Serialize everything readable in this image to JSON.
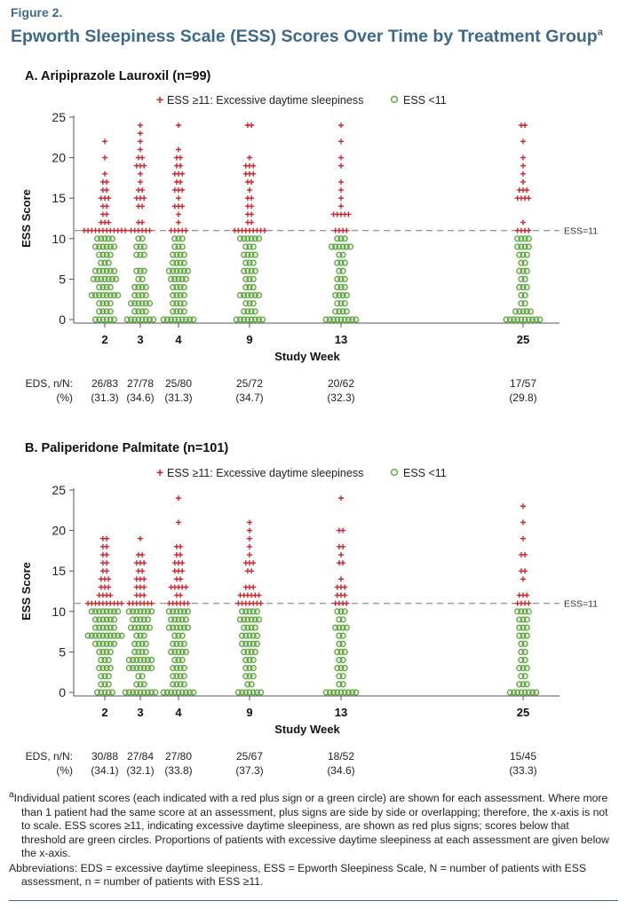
{
  "figure": {
    "label": "Figure 2.",
    "title": "Epworth Sleepiness Scale (ESS) Scores Over Time by Treatment Group",
    "title_sup": "a"
  },
  "legend": {
    "plus_label": "ESS ≥11: Excessive daytime sleepiness",
    "circle_label": "ESS <11"
  },
  "colors": {
    "plus": "#d2232a",
    "circle": "#5fa83f",
    "reference": "#9a9a9a",
    "title": "#3d6a8a"
  },
  "chart_data": [
    {
      "type": "scatter",
      "panel_title": "A. Aripiprazole Lauroxil (n=99)",
      "xlabel": "Study Week",
      "ylabel": "ESS Score",
      "x_ticks": [
        "2",
        "3",
        "4",
        "9",
        "13",
        "25"
      ],
      "y_ticks": [
        0,
        5,
        10,
        15,
        20,
        25
      ],
      "ylim": [
        0,
        25
      ],
      "reference_line": {
        "y": 11,
        "label": "ESS=11"
      },
      "row_label_1": "EDS, n/N:",
      "row_label_2": "(%)",
      "eds_counts": [
        "26/83",
        "27/78",
        "25/80",
        "25/72",
        "20/62",
        "17/57"
      ],
      "eds_percent": [
        "(31.3)",
        "(34.6)",
        "(31.3)",
        "(34.7)",
        "(32.3)",
        "(29.8)"
      ],
      "series": [
        {
          "week": "2",
          "counts": {
            "0": 6,
            "1": 4,
            "2": 4,
            "3": 8,
            "4": 4,
            "5": 7,
            "6": 6,
            "7": 3,
            "8": 4,
            "9": 6,
            "10": 5,
            "11": 12,
            "12": 3,
            "13": 2,
            "14": 2,
            "15": 3,
            "16": 2,
            "17": 2,
            "18": 1,
            "20": 1,
            "22": 1
          }
        },
        {
          "week": "3",
          "counts": {
            "0": 8,
            "1": 4,
            "2": 6,
            "3": 4,
            "4": 4,
            "5": 2,
            "6": 3,
            "8": 3,
            "9": 3,
            "10": 2,
            "11": 6,
            "12": 2,
            "14": 2,
            "15": 3,
            "16": 2,
            "17": 1,
            "18": 1,
            "19": 3,
            "20": 2,
            "21": 1,
            "22": 1,
            "23": 1,
            "24": 1
          }
        },
        {
          "week": "4",
          "counts": {
            "0": 9,
            "1": 4,
            "2": 4,
            "3": 4,
            "4": 4,
            "5": 5,
            "6": 6,
            "7": 4,
            "8": 4,
            "9": 3,
            "10": 3,
            "11": 5,
            "12": 1,
            "13": 1,
            "14": 3,
            "15": 1,
            "16": 3,
            "17": 2,
            "18": 3,
            "19": 2,
            "20": 2,
            "21": 1,
            "24": 1
          }
        },
        {
          "week": "9",
          "counts": {
            "0": 8,
            "1": 4,
            "2": 3,
            "3": 6,
            "4": 3,
            "5": 3,
            "6": 4,
            "7": 3,
            "8": 4,
            "9": 3,
            "10": 6,
            "11": 9,
            "12": 2,
            "13": 2,
            "14": 2,
            "15": 2,
            "16": 1,
            "17": 2,
            "18": 3,
            "19": 3,
            "20": 1,
            "24": 2
          }
        },
        {
          "week": "13",
          "counts": {
            "0": 9,
            "1": 4,
            "2": 3,
            "3": 4,
            "4": 3,
            "5": 3,
            "6": 2,
            "7": 3,
            "8": 2,
            "9": 6,
            "10": 3,
            "11": 4,
            "13": 5,
            "14": 1,
            "15": 1,
            "16": 1,
            "17": 1,
            "19": 1,
            "20": 1,
            "22": 1,
            "24": 1
          }
        },
        {
          "week": "25",
          "counts": {
            "0": 10,
            "1": 5,
            "2": 2,
            "3": 2,
            "4": 3,
            "5": 2,
            "6": 3,
            "7": 2,
            "8": 3,
            "9": 4,
            "10": 4,
            "11": 4,
            "12": 1,
            "15": 4,
            "16": 3,
            "17": 1,
            "18": 1,
            "19": 1,
            "20": 1,
            "22": 1,
            "24": 2
          }
        }
      ]
    },
    {
      "type": "scatter",
      "panel_title": "B. Paliperidone Palmitate (n=101)",
      "xlabel": "Study Week",
      "ylabel": "ESS Score",
      "x_ticks": [
        "2",
        "3",
        "4",
        "9",
        "13",
        "25"
      ],
      "y_ticks": [
        0,
        5,
        10,
        15,
        20,
        25
      ],
      "ylim": [
        0,
        25
      ],
      "reference_line": {
        "y": 11,
        "label": "ESS=11"
      },
      "row_label_1": "EDS, n/N:",
      "row_label_2": "(%)",
      "eds_counts": [
        "30/88",
        "27/84",
        "27/80",
        "25/67",
        "18/52",
        "15/45"
      ],
      "eds_percent": [
        "(34.1)",
        "(32.1)",
        "(33.8)",
        "(37.3)",
        "(34.6)",
        "(33.3)"
      ],
      "series": [
        {
          "week": "2",
          "counts": {
            "0": 5,
            "1": 3,
            "2": 3,
            "3": 4,
            "4": 3,
            "5": 4,
            "6": 6,
            "7": 10,
            "8": 6,
            "9": 6,
            "10": 8,
            "11": 10,
            "12": 4,
            "13": 3,
            "14": 3,
            "15": 2,
            "16": 2,
            "17": 2,
            "18": 2,
            "19": 2
          }
        },
        {
          "week": "3",
          "counts": {
            "0": 9,
            "1": 3,
            "2": 2,
            "3": 7,
            "4": 7,
            "5": 4,
            "6": 4,
            "7": 3,
            "8": 6,
            "9": 5,
            "10": 7,
            "11": 7,
            "12": 3,
            "13": 3,
            "14": 3,
            "15": 2,
            "16": 3,
            "17": 2,
            "19": 1
          }
        },
        {
          "week": "4",
          "counts": {
            "0": 9,
            "1": 4,
            "2": 4,
            "3": 4,
            "4": 3,
            "5": 5,
            "6": 4,
            "7": 3,
            "8": 6,
            "9": 5,
            "10": 6,
            "11": 6,
            "12": 2,
            "13": 5,
            "14": 2,
            "15": 3,
            "16": 3,
            "17": 2,
            "18": 2,
            "21": 1,
            "24": 1
          }
        },
        {
          "week": "9",
          "counts": {
            "0": 7,
            "1": 2,
            "2": 3,
            "3": 3,
            "4": 3,
            "5": 4,
            "6": 5,
            "7": 5,
            "8": 4,
            "9": 6,
            "10": 5,
            "11": 7,
            "12": 6,
            "13": 3,
            "15": 2,
            "16": 3,
            "17": 1,
            "18": 1,
            "19": 1,
            "20": 1,
            "21": 1
          }
        },
        {
          "week": "13",
          "counts": {
            "0": 9,
            "1": 2,
            "2": 2,
            "3": 3,
            "4": 2,
            "5": 3,
            "6": 2,
            "7": 2,
            "8": 4,
            "9": 2,
            "10": 3,
            "11": 4,
            "12": 3,
            "13": 3,
            "14": 1,
            "16": 2,
            "17": 1,
            "18": 2,
            "20": 2,
            "24": 1
          }
        },
        {
          "week": "25",
          "counts": {
            "0": 8,
            "1": 3,
            "2": 2,
            "3": 3,
            "4": 2,
            "5": 2,
            "6": 2,
            "7": 3,
            "8": 3,
            "9": 3,
            "10": 4,
            "11": 4,
            "12": 3,
            "14": 1,
            "15": 2,
            "17": 2,
            "19": 1,
            "21": 1,
            "23": 1
          }
        }
      ]
    }
  ],
  "footnotes": {
    "a_marker": "a",
    "a_text": "Individual patient scores (each indicated with a red plus sign or a green circle) are shown for each assessment. Where more than 1 patient had the same score at an assessment, plus signs are side by side or overlapping; therefore, the x-axis is not to scale. ESS scores ≥11, indicating excessive daytime sleepiness, are shown as red plus signs; scores below that threshold are green circles. Proportions of patients with excessive daytime sleepiness at each assessment are given below the x-axis.",
    "abbreviations": "Abbreviations: EDS = excessive daytime sleepiness, ESS = Epworth Sleepiness Scale, N = number of patients with ESS assessment, n = number of patients with ESS ≥11."
  }
}
